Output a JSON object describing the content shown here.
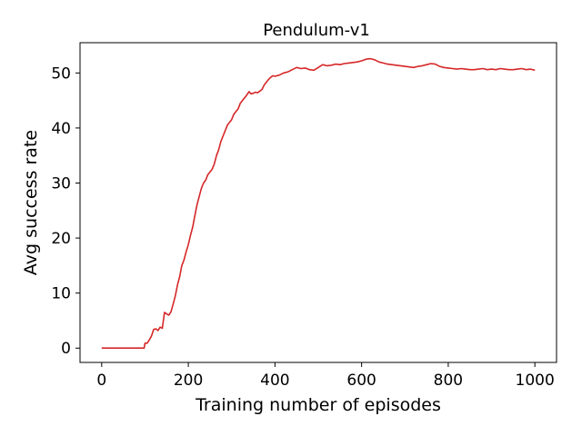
{
  "chart_data": {
    "type": "line",
    "title": "Pendulum-v1",
    "xlabel": "Training number of episodes",
    "ylabel": "Avg success rate",
    "xlim": [
      -50,
      1050
    ],
    "ylim": [
      -2.6,
      55.5
    ],
    "xticks": [
      0,
      200,
      400,
      600,
      800,
      1000
    ],
    "yticks": [
      0,
      10,
      20,
      30,
      40,
      50
    ],
    "grid": false,
    "series": [
      {
        "color": "#d62728",
        "x": [
          0,
          20,
          40,
          60,
          80,
          98,
          100,
          105,
          110,
          115,
          120,
          125,
          130,
          135,
          140,
          145,
          150,
          155,
          160,
          165,
          170,
          175,
          180,
          185,
          190,
          195,
          200,
          205,
          210,
          215,
          220,
          225,
          230,
          235,
          240,
          245,
          250,
          255,
          260,
          265,
          270,
          275,
          280,
          285,
          290,
          295,
          300,
          305,
          310,
          315,
          320,
          325,
          330,
          335,
          340,
          345,
          350,
          355,
          360,
          365,
          370,
          375,
          380,
          385,
          390,
          395,
          400,
          410,
          420,
          430,
          440,
          450,
          460,
          470,
          480,
          490,
          500,
          510,
          520,
          530,
          540,
          550,
          560,
          570,
          580,
          590,
          600,
          610,
          620,
          630,
          640,
          650,
          660,
          670,
          680,
          690,
          700,
          710,
          720,
          730,
          740,
          750,
          760,
          770,
          780,
          790,
          800,
          810,
          820,
          830,
          840,
          850,
          860,
          870,
          880,
          890,
          900,
          910,
          920,
          930,
          940,
          950,
          960,
          970,
          980,
          990,
          1000
        ],
        "y": [
          0,
          0,
          0,
          0,
          0,
          0,
          0.9,
          0.9,
          1.5,
          2.2,
          3.4,
          3.5,
          3.2,
          3.8,
          3.6,
          6.5,
          6.2,
          6.0,
          6.6,
          8.0,
          9.5,
          11.5,
          13.0,
          15.0,
          16.0,
          17.5,
          18.8,
          20.5,
          22.0,
          24.0,
          26.0,
          27.5,
          29.0,
          30.0,
          30.5,
          31.5,
          32.0,
          32.5,
          33.5,
          35.0,
          36.0,
          37.5,
          38.5,
          39.5,
          40.5,
          41.0,
          41.5,
          42.5,
          43.0,
          43.5,
          44.5,
          45.0,
          45.5,
          46.0,
          46.6,
          46.2,
          46.3,
          46.5,
          46.4,
          46.7,
          47.0,
          47.8,
          48.3,
          48.8,
          49.2,
          49.5,
          49.4,
          49.6,
          50.0,
          50.2,
          50.6,
          51.0,
          50.8,
          50.9,
          50.6,
          50.5,
          51.0,
          51.5,
          51.3,
          51.4,
          51.6,
          51.5,
          51.7,
          51.8,
          51.9,
          52.0,
          52.2,
          52.5,
          52.6,
          52.4,
          52.0,
          51.8,
          51.6,
          51.5,
          51.4,
          51.3,
          51.2,
          51.1,
          51.0,
          51.2,
          51.3,
          51.5,
          51.7,
          51.6,
          51.2,
          51.0,
          50.9,
          50.8,
          50.7,
          50.8,
          50.7,
          50.6,
          50.6,
          50.7,
          50.8,
          50.6,
          50.7,
          50.6,
          50.8,
          50.7,
          50.6,
          50.6,
          50.7,
          50.8,
          50.6,
          50.7,
          50.5
        ]
      }
    ]
  }
}
